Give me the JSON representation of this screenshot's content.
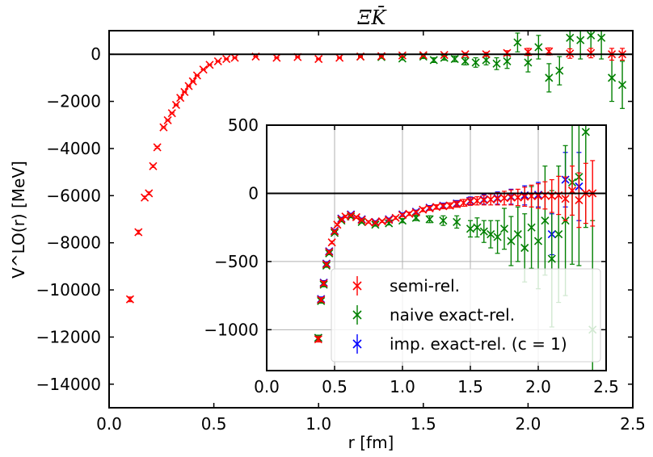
{
  "chart_data": [
    {
      "type": "scatter",
      "title": "ΞK̄",
      "xlabel": "r [fm]",
      "ylabel": "V^LO(r) [MeV]",
      "xlim": [
        0.0,
        2.5
      ],
      "ylim": [
        -15000,
        1000
      ],
      "xticks": [
        "0.0",
        "0.5",
        "1.0",
        "1.5",
        "2.0",
        "2.5"
      ],
      "yticks": [
        "0",
        "−2000",
        "−4000",
        "−6000",
        "−8000",
        "−10000",
        "−12000",
        "−14000"
      ],
      "xtick_values": [
        0.0,
        0.5,
        1.0,
        1.5,
        2.0,
        2.5
      ],
      "ytick_values": [
        0,
        -2000,
        -4000,
        -6000,
        -8000,
        -10000,
        -12000,
        -14000
      ],
      "grid": false,
      "hline_at": 0,
      "marker": "x",
      "series": [
        {
          "name": "semi-rel.",
          "color": "#ff0000",
          "x": [
            0.1,
            0.14,
            0.17,
            0.19,
            0.21,
            0.23,
            0.26,
            0.28,
            0.3,
            0.32,
            0.34,
            0.36,
            0.38,
            0.4,
            0.42,
            0.45,
            0.48,
            0.52,
            0.56,
            0.6,
            0.7,
            0.8,
            0.9,
            1.0,
            1.1,
            1.2,
            1.3,
            1.4,
            1.5,
            1.6,
            1.7,
            1.8,
            1.9,
            2.0,
            2.1,
            2.2,
            2.3,
            2.4,
            2.45
          ],
          "y": [
            -10400,
            -7550,
            -6080,
            -5900,
            -4750,
            -3950,
            -3100,
            -2800,
            -2500,
            -2150,
            -1850,
            -1600,
            -1350,
            -1150,
            -900,
            -650,
            -450,
            -300,
            -200,
            -150,
            -100,
            -150,
            -120,
            -200,
            -150,
            -100,
            -80,
            -50,
            -40,
            -30,
            0,
            0,
            50,
            100,
            120,
            30,
            50,
            0,
            0
          ],
          "err": [
            100,
            80,
            60,
            60,
            50,
            40,
            30,
            30,
            30,
            25,
            25,
            20,
            20,
            20,
            15,
            15,
            10,
            10,
            10,
            10,
            10,
            10,
            15,
            20,
            20,
            20,
            25,
            30,
            40,
            50,
            60,
            80,
            100,
            150,
            150,
            200,
            200,
            250,
            250
          ]
        },
        {
          "name": "naive exact-rel.",
          "color": "#008000",
          "x": [
            1.2,
            1.3,
            1.4,
            1.5,
            1.55,
            1.6,
            1.65,
            1.7,
            1.75,
            1.8,
            1.85,
            1.9,
            1.95,
            2.0,
            2.05,
            2.1,
            2.15,
            2.2,
            2.25,
            2.3,
            2.35,
            2.4,
            2.45
          ],
          "y": [
            -100,
            -120,
            -180,
            -100,
            -250,
            -150,
            -200,
            -300,
            -350,
            -250,
            -400,
            -300,
            500,
            -350,
            300,
            -1000,
            -700,
            700,
            600,
            800,
            700,
            -1000,
            -1300
          ],
          "err": [
            40,
            50,
            60,
            80,
            100,
            100,
            120,
            150,
            200,
            200,
            250,
            300,
            400,
            400,
            500,
            600,
            600,
            700,
            800,
            800,
            900,
            1000,
            1000
          ]
        }
      ]
    },
    {
      "type": "scatter",
      "title": "",
      "xlabel": "",
      "ylabel": "",
      "xlim": [
        0.0,
        2.5
      ],
      "ylim": [
        -1300,
        500
      ],
      "xticks": [
        "0.0",
        "0.5",
        "1.0",
        "1.5",
        "2.0",
        "2.5"
      ],
      "yticks": [
        "500",
        "0",
        "−500",
        "−1000"
      ],
      "xtick_values": [
        0.0,
        0.5,
        1.0,
        1.5,
        2.0,
        2.5
      ],
      "ytick_values": [
        500,
        0,
        -500,
        -1000
      ],
      "grid": true,
      "hline_at": 0,
      "marker": "x",
      "legend_position": "lower-right",
      "series": [
        {
          "name": "semi-rel.",
          "color": "#ff0000",
          "x": [
            0.38,
            0.4,
            0.42,
            0.44,
            0.46,
            0.48,
            0.5,
            0.52,
            0.55,
            0.58,
            0.62,
            0.66,
            0.7,
            0.75,
            0.8,
            0.85,
            0.9,
            0.95,
            1.0,
            1.05,
            1.1,
            1.15,
            1.2,
            1.25,
            1.3,
            1.35,
            1.4,
            1.45,
            1.5,
            1.55,
            1.6,
            1.65,
            1.7,
            1.75,
            1.8,
            1.85,
            1.9,
            1.95,
            2.0,
            2.05,
            2.1,
            2.15,
            2.2,
            2.25,
            2.3,
            2.35,
            2.4
          ],
          "y": [
            -1070,
            -780,
            -660,
            -520,
            -430,
            -360,
            -280,
            -230,
            -190,
            -170,
            -160,
            -175,
            -195,
            -210,
            -215,
            -205,
            -195,
            -180,
            -160,
            -150,
            -140,
            -120,
            -110,
            -100,
            -95,
            -90,
            -80,
            -70,
            -60,
            -55,
            -50,
            -45,
            -40,
            -35,
            -30,
            -30,
            -25,
            -20,
            -20,
            -15,
            -20,
            -15,
            -40,
            20,
            -50,
            0,
            0
          ],
          "err": [
            20,
            15,
            15,
            12,
            10,
            10,
            8,
            8,
            8,
            8,
            8,
            8,
            8,
            8,
            8,
            8,
            8,
            10,
            10,
            12,
            12,
            14,
            15,
            16,
            18,
            20,
            22,
            25,
            28,
            30,
            35,
            40,
            45,
            50,
            55,
            60,
            70,
            80,
            90,
            100,
            120,
            140,
            160,
            180,
            200,
            220,
            240
          ]
        },
        {
          "name": "naive exact-rel.",
          "color": "#008000",
          "x": [
            0.38,
            0.4,
            0.42,
            0.44,
            0.46,
            0.5,
            0.55,
            0.62,
            0.7,
            0.8,
            0.9,
            1.0,
            1.1,
            1.2,
            1.3,
            1.4,
            1.5,
            1.55,
            1.6,
            1.65,
            1.7,
            1.75,
            1.8,
            1.85,
            1.9,
            1.95,
            2.0,
            2.05,
            2.1,
            2.15,
            2.2,
            2.25,
            2.3,
            2.35,
            2.4
          ],
          "y": [
            -1060,
            -790,
            -670,
            -530,
            -440,
            -290,
            -200,
            -170,
            -210,
            -230,
            -220,
            -200,
            -180,
            -190,
            -200,
            -210,
            -260,
            -250,
            -280,
            -300,
            -320,
            -260,
            -350,
            -300,
            -400,
            -250,
            -350,
            -200,
            -480,
            -300,
            -200,
            80,
            120,
            450,
            -1000
          ],
          "err": [
            20,
            15,
            15,
            12,
            10,
            8,
            8,
            8,
            8,
            10,
            12,
            15,
            20,
            25,
            35,
            45,
            60,
            70,
            80,
            100,
            120,
            150,
            180,
            200,
            250,
            300,
            350,
            400,
            500,
            500,
            550,
            600,
            650,
            700,
            800
          ]
        },
        {
          "name": "imp. exact-rel. (c = 1)",
          "color": "#0000ff",
          "x": [
            0.38,
            0.4,
            0.42,
            0.44,
            0.46,
            0.5,
            0.55,
            0.62,
            0.7,
            0.8,
            0.9,
            1.0,
            1.1,
            1.2,
            1.3,
            1.4,
            1.5,
            1.6,
            1.7,
            1.8,
            1.9,
            2.0,
            2.1,
            2.2,
            2.3
          ],
          "y": [
            -1060,
            -775,
            -655,
            -515,
            -425,
            -275,
            -185,
            -155,
            -190,
            -210,
            -190,
            -155,
            -135,
            -105,
            -90,
            -75,
            -55,
            -45,
            -35,
            -25,
            -15,
            -10,
            -300,
            100,
            50
          ],
          "err": [
            20,
            15,
            15,
            12,
            10,
            8,
            8,
            8,
            8,
            8,
            8,
            10,
            12,
            15,
            18,
            22,
            28,
            35,
            45,
            55,
            70,
            90,
            150,
            200,
            250
          ]
        }
      ]
    }
  ],
  "legend": {
    "items": [
      {
        "label": "semi-rel.",
        "color": "#ff0000"
      },
      {
        "label": "naive exact-rel.",
        "color": "#008000"
      },
      {
        "label": "imp. exact-rel. (c = 1)",
        "color": "#0000ff"
      }
    ]
  }
}
